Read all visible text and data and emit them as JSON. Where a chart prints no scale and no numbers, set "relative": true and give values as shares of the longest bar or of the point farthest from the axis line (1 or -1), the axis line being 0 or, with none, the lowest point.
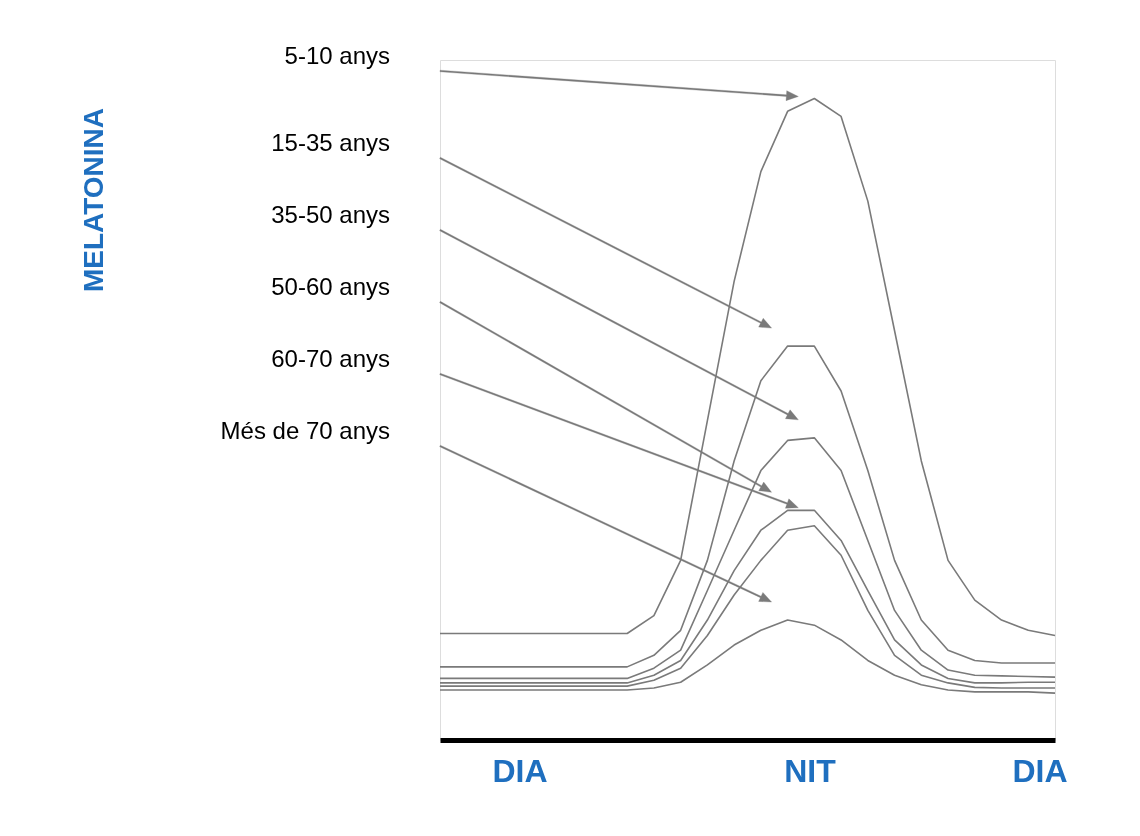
{
  "chart_data": {
    "type": "line",
    "relative": true,
    "categories": [
      null,
      null,
      null,
      null,
      null,
      null,
      null,
      null,
      null,
      null,
      null,
      null,
      null,
      null,
      null,
      null,
      null,
      null,
      null,
      null,
      null,
      null,
      null,
      null
    ],
    "series": [
      {
        "color": "#7a7a7a",
        "values": [
          0.166,
          0.166,
          0.166,
          0.166,
          0.166,
          0.166,
          0.166,
          0.166,
          0.194,
          0.28,
          0.498,
          0.715,
          0.886,
          0.98,
          1.0,
          0.972,
          0.84,
          0.638,
          0.435,
          0.28,
          0.218,
          0.187,
          0.171,
          0.163
        ]
      },
      {
        "color": "#7a7a7a",
        "values": [
          0.114,
          0.114,
          0.114,
          0.114,
          0.114,
          0.114,
          0.114,
          0.114,
          0.132,
          0.171,
          0.28,
          0.435,
          0.56,
          0.614,
          0.614,
          0.544,
          0.42,
          0.28,
          0.187,
          0.14,
          0.124,
          0.12,
          0.12,
          0.12
        ]
      },
      {
        "color": "#7a7a7a",
        "values": [
          0.096,
          0.096,
          0.096,
          0.096,
          0.096,
          0.096,
          0.096,
          0.096,
          0.112,
          0.14,
          0.233,
          0.327,
          0.42,
          0.467,
          0.471,
          0.42,
          0.311,
          0.202,
          0.14,
          0.109,
          0.101,
          0.1,
          0.099,
          0.098
        ]
      },
      {
        "color": "#7a7a7a",
        "values": [
          0.089,
          0.089,
          0.089,
          0.089,
          0.089,
          0.089,
          0.089,
          0.089,
          0.101,
          0.124,
          0.187,
          0.264,
          0.327,
          0.358,
          0.358,
          0.311,
          0.233,
          0.156,
          0.117,
          0.096,
          0.089,
          0.089,
          0.09,
          0.09
        ]
      },
      {
        "color": "#7a7a7a",
        "values": [
          0.084,
          0.084,
          0.084,
          0.084,
          0.084,
          0.084,
          0.084,
          0.084,
          0.093,
          0.112,
          0.163,
          0.226,
          0.28,
          0.327,
          0.334,
          0.288,
          0.202,
          0.132,
          0.101,
          0.089,
          0.082,
          0.081,
          0.081,
          0.081
        ]
      },
      {
        "color": "#7a7a7a",
        "values": [
          0.078,
          0.078,
          0.078,
          0.078,
          0.078,
          0.078,
          0.078,
          0.078,
          0.081,
          0.09,
          0.117,
          0.148,
          0.171,
          0.187,
          0.179,
          0.156,
          0.124,
          0.101,
          0.086,
          0.078,
          0.075,
          0.075,
          0.075,
          0.073
        ]
      }
    ],
    "annotations": [
      "MELATONINA",
      "5-10 anys",
      "15-35 anys",
      "35-50 anys",
      "50-60 anys",
      "60-70 anys",
      "Més de 70 anys",
      "DIA",
      "NIT",
      "DIA"
    ]
  }
}
